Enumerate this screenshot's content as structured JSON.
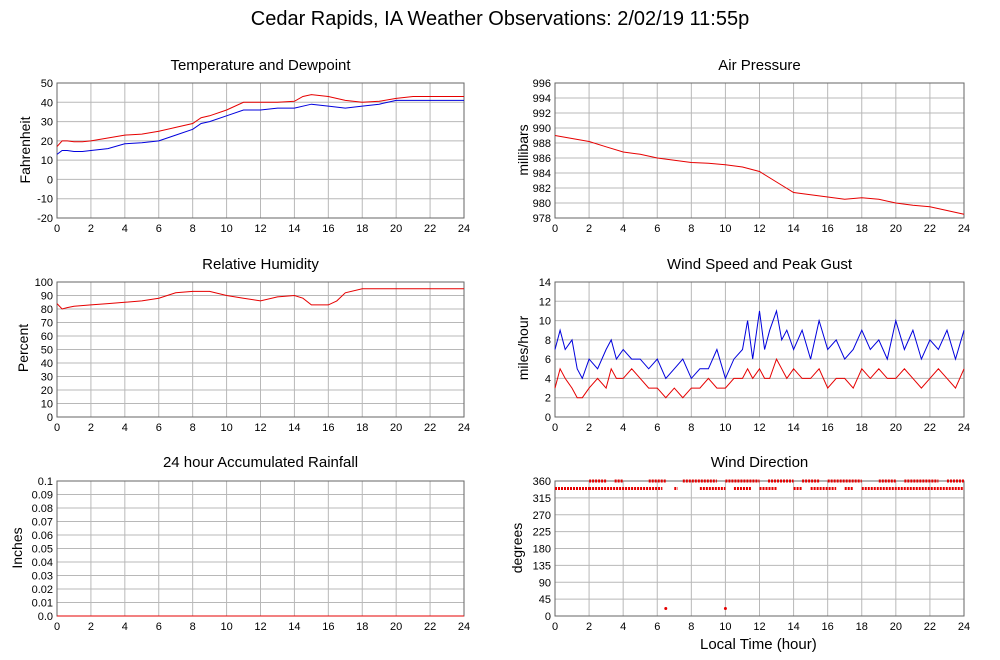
{
  "page": {
    "title": "Cedar Rapids, IA Weather Observations: 2/02/19 11:55p"
  },
  "colors": {
    "red": "#e60000",
    "blue": "#0000dd",
    "grid": "#b8b8b8"
  },
  "xaxis_label": "Local Time (hour)",
  "chart_data": [
    {
      "id": "temp",
      "type": "line",
      "title": "Temperature and Dewpoint",
      "ylabel": "Fahrenheit",
      "ylim": [
        -20,
        50
      ],
      "yticks": [
        "-20",
        "-10",
        "0",
        "10",
        "20",
        "30",
        "40",
        "50"
      ],
      "xlim": [
        0,
        24
      ],
      "xticks": [
        "0",
        "2",
        "4",
        "6",
        "8",
        "10",
        "12",
        "14",
        "16",
        "18",
        "20",
        "22",
        "24"
      ],
      "series": [
        {
          "color": "red",
          "x": [
            0,
            0.3,
            0.6,
            1,
            1.5,
            2,
            3,
            4,
            5,
            6,
            7,
            8,
            8.5,
            9,
            10,
            11,
            12,
            13,
            14,
            14.5,
            15,
            16,
            17,
            18,
            19,
            20,
            21,
            22,
            23,
            24
          ],
          "values": [
            17,
            20,
            20,
            19.5,
            19.5,
            20,
            21.5,
            23,
            23.5,
            25,
            27,
            29,
            32,
            33,
            36,
            40,
            40,
            40,
            40.5,
            43,
            44,
            43,
            41,
            40,
            40.5,
            42,
            43,
            43,
            43,
            43
          ]
        },
        {
          "color": "blue",
          "x": [
            0,
            0.3,
            0.6,
            1,
            1.5,
            2,
            3,
            4,
            5,
            6,
            7,
            8,
            8.5,
            9,
            10,
            11,
            12,
            13,
            14,
            15,
            16,
            17,
            18,
            19,
            20,
            21,
            22,
            23,
            24
          ],
          "values": [
            13,
            15,
            15,
            14.5,
            14.5,
            15,
            16,
            18.5,
            19,
            20,
            23,
            26,
            29,
            30,
            33,
            36,
            36,
            37,
            37,
            39,
            38,
            37,
            38,
            39,
            41,
            41,
            41,
            41,
            41
          ]
        }
      ]
    },
    {
      "id": "pressure",
      "type": "line",
      "title": "Air Pressure",
      "ylabel": "millibars",
      "ylim": [
        978,
        996
      ],
      "yticks": [
        "978",
        "980",
        "982",
        "984",
        "986",
        "988",
        "990",
        "992",
        "994",
        "996"
      ],
      "xlim": [
        0,
        24
      ],
      "xticks": [
        "0",
        "2",
        "4",
        "6",
        "8",
        "10",
        "12",
        "14",
        "16",
        "18",
        "20",
        "22",
        "24"
      ],
      "series": [
        {
          "color": "red",
          "x": [
            0,
            1,
            2,
            3,
            4,
            5,
            6,
            7,
            8,
            9,
            10,
            11,
            12,
            13,
            14,
            15,
            16,
            17,
            18,
            19,
            20,
            21,
            22,
            23,
            24
          ],
          "values": [
            989,
            988.6,
            988.2,
            987.5,
            986.8,
            986.5,
            986,
            985.7,
            985.4,
            985.3,
            985.1,
            984.8,
            984.2,
            982.8,
            981.4,
            981.1,
            980.8,
            980.5,
            980.7,
            980.5,
            980,
            979.7,
            979.5,
            979,
            978.5
          ]
        }
      ]
    },
    {
      "id": "humidity",
      "type": "line",
      "title": "Relative Humidity",
      "ylabel": "Percent",
      "ylim": [
        0,
        100
      ],
      "yticks": [
        "0",
        "10",
        "20",
        "30",
        "40",
        "50",
        "60",
        "70",
        "80",
        "90",
        "100"
      ],
      "xlim": [
        0,
        24
      ],
      "xticks": [
        "0",
        "2",
        "4",
        "6",
        "8",
        "10",
        "12",
        "14",
        "16",
        "18",
        "20",
        "22",
        "24"
      ],
      "series": [
        {
          "color": "red",
          "x": [
            0,
            0.3,
            0.6,
            1,
            2,
            3,
            4,
            5,
            6,
            7,
            8,
            9,
            10,
            11,
            12,
            13,
            14,
            14.5,
            15,
            16,
            16.5,
            17,
            18,
            19,
            20,
            21,
            22,
            23,
            24
          ],
          "values": [
            84,
            80,
            81,
            82,
            83,
            84,
            85,
            86,
            88,
            92,
            93,
            93,
            90,
            88,
            86,
            89,
            90,
            88,
            83,
            83,
            86,
            92,
            95,
            95,
            95,
            95,
            95,
            95,
            95
          ]
        }
      ]
    },
    {
      "id": "wind",
      "type": "line",
      "title": "Wind Speed and Peak Gust",
      "ylabel": "miles/hour",
      "ylim": [
        0,
        14
      ],
      "yticks": [
        "0",
        "2",
        "4",
        "6",
        "8",
        "10",
        "12",
        "14"
      ],
      "xlim": [
        0,
        24
      ],
      "xticks": [
        "0",
        "2",
        "4",
        "6",
        "8",
        "10",
        "12",
        "14",
        "16",
        "18",
        "20",
        "22",
        "24"
      ],
      "series": [
        {
          "color": "blue",
          "x": [
            0,
            0.3,
            0.6,
            1,
            1.3,
            1.6,
            2,
            2.5,
            3,
            3.3,
            3.6,
            4,
            4.5,
            5,
            5.5,
            6,
            6.5,
            7,
            7.5,
            8,
            8.5,
            9,
            9.5,
            10,
            10.5,
            11,
            11.3,
            11.6,
            12,
            12.3,
            12.6,
            13,
            13.3,
            13.6,
            14,
            14.5,
            15,
            15.5,
            16,
            16.5,
            17,
            17.5,
            18,
            18.5,
            19,
            19.5,
            20,
            20.5,
            21,
            21.5,
            22,
            22.5,
            23,
            23.5,
            24
          ],
          "values": [
            7,
            9,
            7,
            8,
            5,
            4,
            6,
            5,
            7,
            8,
            6,
            7,
            6,
            6,
            5,
            6,
            4,
            5,
            6,
            4,
            5,
            5,
            7,
            4,
            6,
            7,
            10,
            6,
            11,
            7,
            9,
            11,
            8,
            9,
            7,
            9,
            6,
            10,
            7,
            8,
            6,
            7,
            9,
            7,
            8,
            6,
            10,
            7,
            9,
            6,
            8,
            7,
            9,
            6,
            9
          ]
        },
        {
          "color": "red",
          "x": [
            0,
            0.3,
            0.6,
            1,
            1.3,
            1.6,
            2,
            2.5,
            3,
            3.3,
            3.6,
            4,
            4.5,
            5,
            5.5,
            6,
            6.5,
            7,
            7.5,
            8,
            8.5,
            9,
            9.5,
            10,
            10.5,
            11,
            11.3,
            11.6,
            12,
            12.3,
            12.6,
            13,
            13.3,
            13.6,
            14,
            14.5,
            15,
            15.5,
            16,
            16.5,
            17,
            17.5,
            18,
            18.5,
            19,
            19.5,
            20,
            20.5,
            21,
            21.5,
            22,
            22.5,
            23,
            23.5,
            24
          ],
          "values": [
            3,
            5,
            4,
            3,
            2,
            2,
            3,
            4,
            3,
            5,
            4,
            4,
            5,
            4,
            3,
            3,
            2,
            3,
            2,
            3,
            3,
            4,
            3,
            3,
            4,
            4,
            5,
            4,
            5,
            4,
            4,
            6,
            5,
            4,
            5,
            4,
            4,
            5,
            3,
            4,
            4,
            3,
            5,
            4,
            5,
            4,
            4,
            5,
            4,
            3,
            4,
            5,
            4,
            3,
            5
          ]
        }
      ]
    },
    {
      "id": "rain",
      "type": "line",
      "title": "24 hour Accumulated Rainfall",
      "ylabel": "Inches",
      "ylim": [
        0,
        0.1
      ],
      "yticks": [
        "0.0",
        "0.01",
        "0.02",
        "0.03",
        "0.04",
        "0.05",
        "0.06",
        "0.07",
        "0.08",
        "0.09",
        "0.1"
      ],
      "xlim": [
        0,
        24
      ],
      "xticks": [
        "0",
        "2",
        "4",
        "6",
        "8",
        "10",
        "12",
        "14",
        "16",
        "18",
        "20",
        "22",
        "24"
      ],
      "series": [
        {
          "color": "red",
          "x": [
            0,
            24
          ],
          "values": [
            0,
            0
          ]
        }
      ]
    },
    {
      "id": "direction",
      "type": "scatter",
      "title": "Wind Direction",
      "ylabel": "degrees",
      "ylim": [
        0,
        360
      ],
      "yticks": [
        "0",
        "45",
        "90",
        "135",
        "180",
        "225",
        "270",
        "315",
        "360"
      ],
      "xlim": [
        0,
        24
      ],
      "xticks": [
        "0",
        "2",
        "4",
        "6",
        "8",
        "10",
        "12",
        "14",
        "16",
        "18",
        "20",
        "22",
        "24"
      ],
      "xlabel": "Local Time (hour)",
      "series": [
        {
          "color": "red",
          "x": [
            6.5,
            10
          ],
          "values": [
            20,
            20
          ]
        }
      ],
      "band_high": {
        "value": 360,
        "x_ranges": [
          [
            2,
            3
          ],
          [
            3.5,
            4
          ],
          [
            5.5,
            6.5
          ],
          [
            7.5,
            9.5
          ],
          [
            10,
            12
          ],
          [
            12.5,
            14
          ],
          [
            14.5,
            15.5
          ],
          [
            16,
            18
          ],
          [
            19,
            20
          ],
          [
            20.5,
            22.5
          ],
          [
            23,
            24
          ]
        ]
      },
      "band_low": {
        "value": 340,
        "x_ranges": [
          [
            0,
            2
          ],
          [
            2,
            6.3
          ],
          [
            7,
            7.2
          ],
          [
            8.5,
            10
          ],
          [
            10.5,
            11.5
          ],
          [
            12,
            13
          ],
          [
            14,
            14.5
          ],
          [
            15,
            16.5
          ],
          [
            17,
            17.5
          ],
          [
            18,
            24
          ]
        ]
      }
    }
  ]
}
